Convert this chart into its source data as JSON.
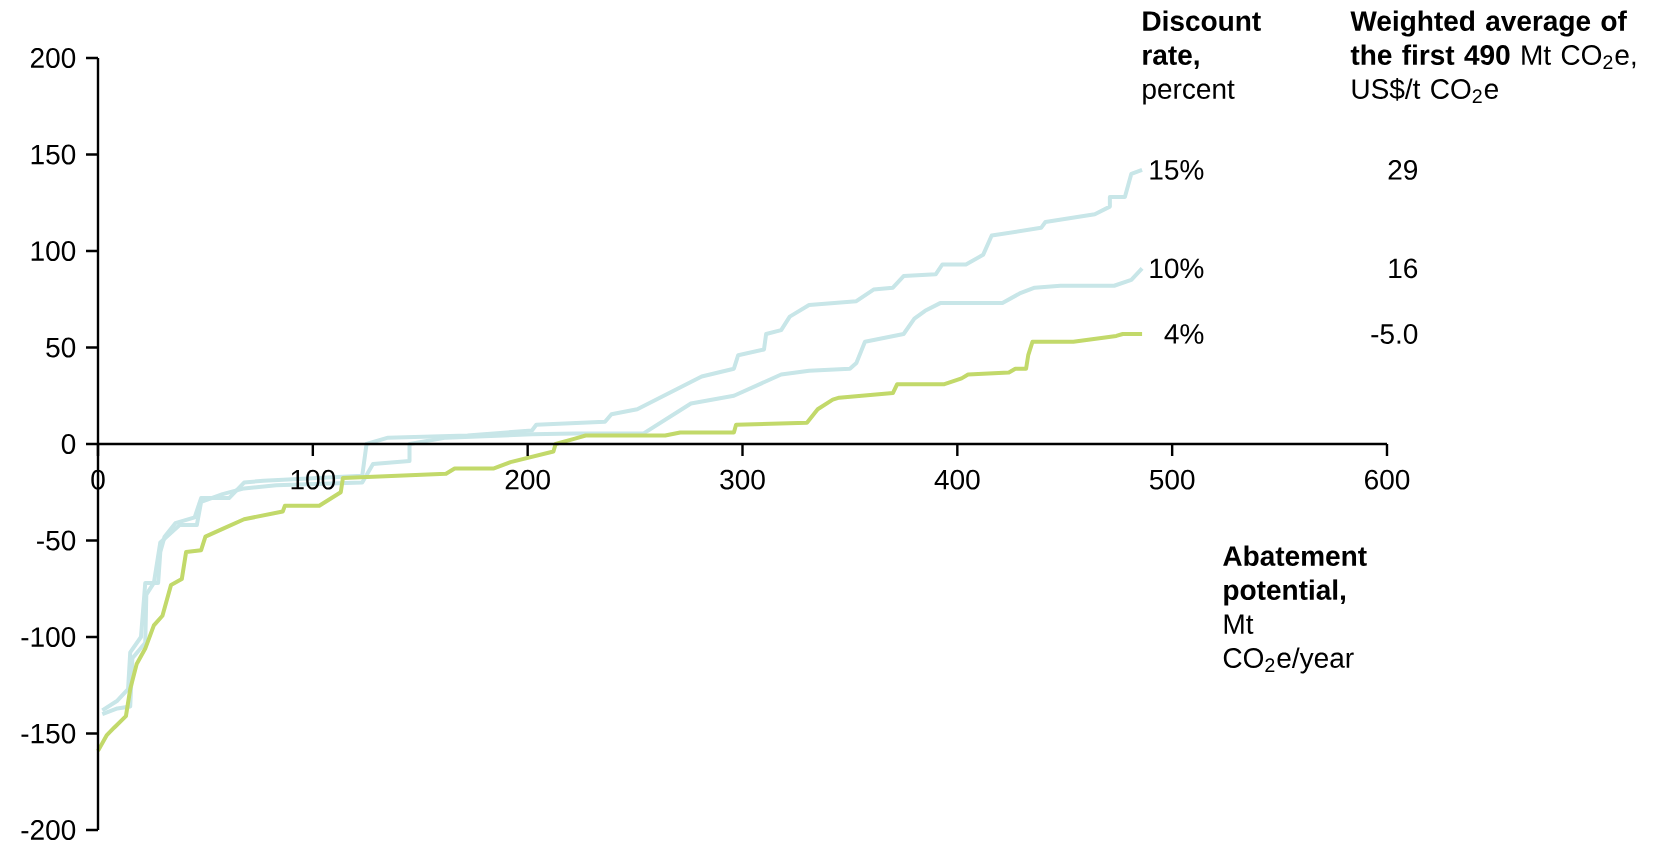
{
  "chart_data": {
    "type": "line",
    "legend_title": "**Discount rate,** percent",
    "xlabel": "**Abatement potential,** Mt CO$_{2}$e/year",
    "annotations": [
      "**Weighted average of the first 490** Mt CO$_{2}$e, US$/t CO$_{2}$e",
      "29",
      "16",
      "-5.0"
    ],
    "xlim": [
      0,
      600
    ],
    "xticks": [
      0,
      100,
      200,
      300,
      400,
      500,
      600
    ],
    "ylim": [
      -200,
      200
    ],
    "yticks": [
      -200,
      -150,
      -100,
      -50,
      0,
      50,
      100,
      150,
      200
    ],
    "series": [
      {
        "name": "15%",
        "color": "#c8e6e8",
        "x": [
          2,
          9,
          14,
          15,
          20,
          22,
          28,
          29,
          31,
          36,
          45,
          48,
          61,
          68,
          77,
          123,
          125,
          135,
          172,
          202,
          204,
          236,
          239,
          251,
          281,
          296,
          298,
          310,
          311,
          318,
          322,
          331,
          353,
          361,
          370,
          375,
          390,
          393,
          404,
          412,
          416,
          439,
          441,
          464,
          471,
          471,
          478,
          481,
          486
        ],
        "values": [
          -138,
          -133,
          -127,
          -108,
          -100,
          -72,
          -72,
          -56,
          -48,
          -41,
          -38,
          -28,
          -28,
          -20,
          -19,
          -16.5,
          0,
          3.3,
          4.4,
          7,
          10,
          11.5,
          15.4,
          18,
          35,
          39,
          46,
          49,
          57,
          59,
          66,
          72,
          74,
          80,
          81,
          87,
          88,
          93,
          93,
          98,
          108,
          112,
          115,
          119,
          123,
          128,
          128,
          140,
          142
        ]
      },
      {
        "name": "10%",
        "color": "#c8e6e8",
        "x": [
          2,
          9,
          15,
          16,
          22,
          22.5,
          26,
          29,
          38,
          46,
          48,
          58,
          68,
          83,
          123,
          128,
          145,
          145,
          162,
          202,
          222,
          254,
          276,
          296,
          318,
          331,
          350,
          353,
          357,
          375,
          380,
          385,
          392,
          421,
          429,
          436,
          448,
          473,
          481,
          486
        ],
        "values": [
          -140,
          -137,
          -136,
          -111,
          -103,
          -78,
          -72,
          -51,
          -42,
          -42,
          -30,
          -26,
          -23,
          -21.4,
          -20,
          -10.4,
          -8.8,
          0,
          3.3,
          5,
          5.5,
          5.5,
          21,
          25,
          36,
          38,
          39,
          42,
          53,
          57,
          65,
          69,
          73,
          73,
          78,
          81,
          82,
          82,
          85,
          91
        ]
      },
      {
        "name": "4%",
        "color": "#c2d96a",
        "x": [
          0,
          4,
          7.5,
          13,
          15,
          18,
          22,
          26,
          30,
          34,
          39,
          41,
          48,
          50,
          58,
          68,
          86,
          87,
          103,
          113,
          114,
          162,
          166,
          184,
          192,
          212,
          213,
          222,
          227,
          264,
          271,
          296,
          297,
          330,
          335,
          342,
          345,
          370,
          372,
          394,
          402,
          405,
          424,
          427,
          432,
          433,
          435,
          454,
          474,
          477,
          486
        ],
        "values": [
          -159,
          -151,
          -147,
          -141,
          -127,
          -114,
          -106,
          -94,
          -89,
          -73,
          -70,
          -56,
          -55,
          -48,
          -44,
          -39,
          -35,
          -32,
          -32,
          -25,
          -17.6,
          -15.4,
          -12.7,
          -12.7,
          -9.4,
          -3.9,
          0,
          2.8,
          4.4,
          4.4,
          6,
          6,
          10,
          11,
          18,
          23,
          24,
          26.4,
          31,
          31,
          34,
          36,
          37,
          39,
          39,
          46,
          53,
          53,
          56,
          57,
          57
        ]
      }
    ]
  }
}
